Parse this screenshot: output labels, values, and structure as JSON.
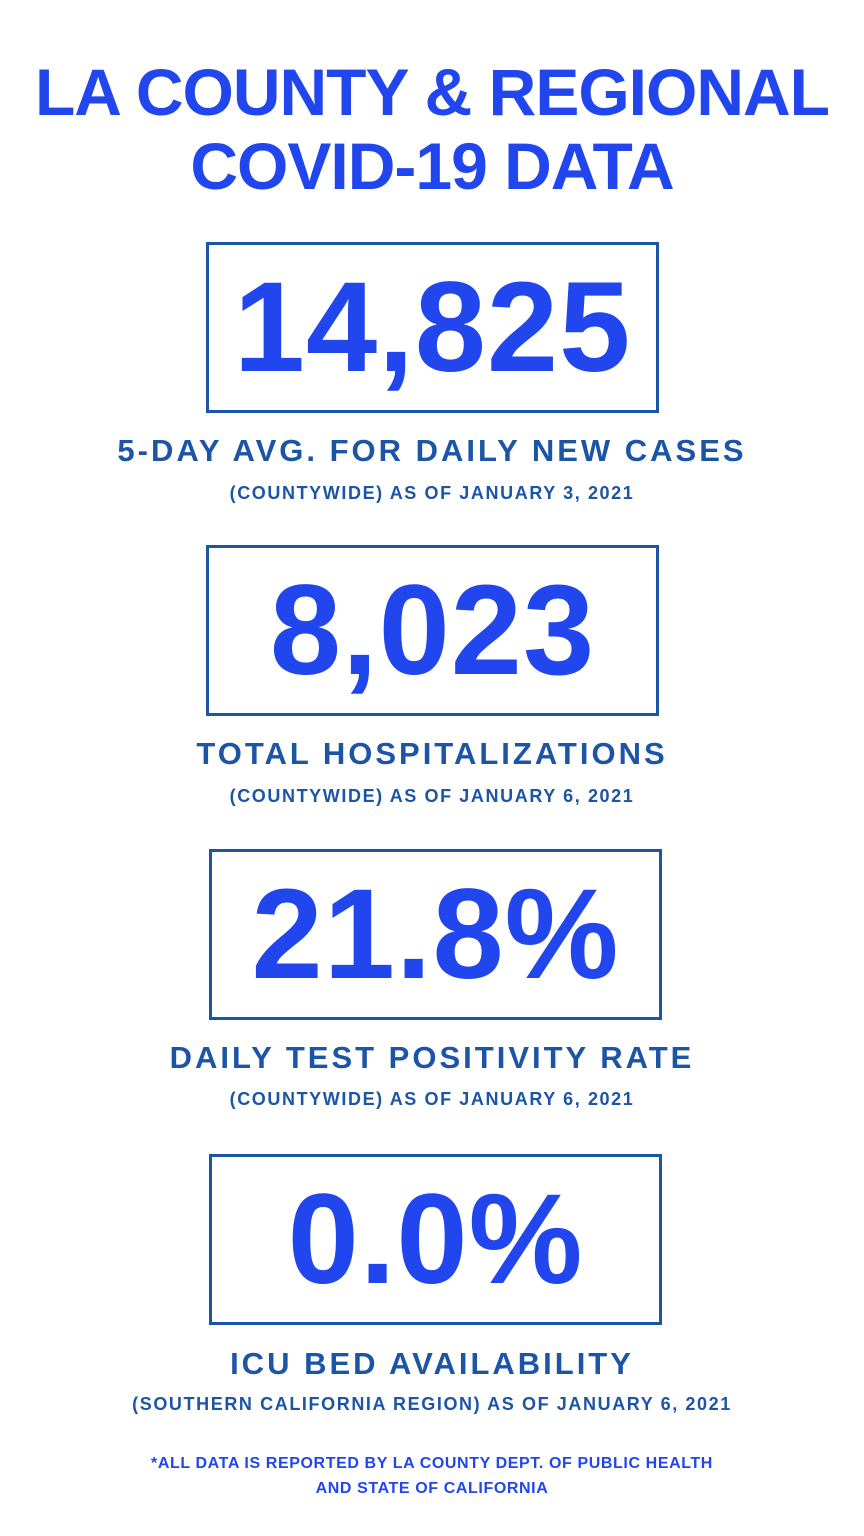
{
  "header": {
    "title_line1": "LA COUNTY & REGIONAL",
    "title_line2": "COVID-19 DATA"
  },
  "stats": [
    {
      "value": "14,825",
      "label": "5-DAY AVG. FOR DAILY NEW CASES",
      "sub": "(COUNTYWIDE) AS OF JANUARY 3, 2021"
    },
    {
      "value": "8,023",
      "label": "TOTAL HOSPITALIZATIONS",
      "sub": "(COUNTYWIDE) AS OF JANUARY 6, 2021"
    },
    {
      "value": "21.8%",
      "label": "DAILY TEST POSITIVITY RATE",
      "sub": "(COUNTYWIDE) AS OF JANUARY 6, 2021"
    },
    {
      "value": "0.0%",
      "label": "ICU BED AVAILABILITY",
      "sub": "(SOUTHERN CALIFORNIA REGION) AS OF JANUARY 6, 2021"
    }
  ],
  "footnote": {
    "line1": "*ALL DATA IS REPORTED BY LA COUNTY DEPT. OF PUBLIC HEALTH",
    "line2": "AND STATE OF CALIFORNIA"
  },
  "colors": {
    "accent": "#2246ee",
    "secondary": "#1c54a6",
    "background": "#ffffff"
  }
}
